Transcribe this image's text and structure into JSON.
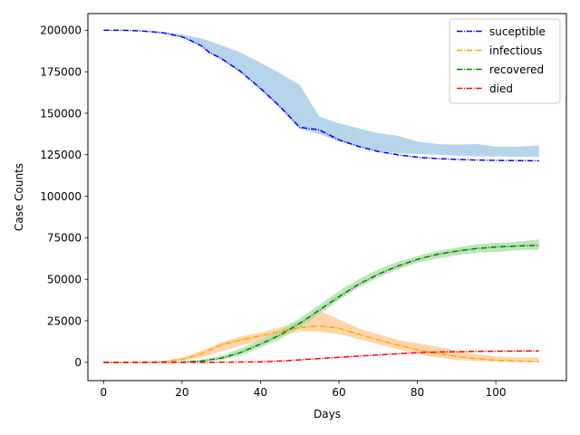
{
  "chart_data": {
    "type": "line",
    "title": "",
    "xlabel": "Days",
    "ylabel": "Case Counts",
    "xlim": [
      -4,
      118
    ],
    "ylim": [
      -11000,
      210000
    ],
    "xticks": [
      0,
      20,
      40,
      60,
      80,
      100
    ],
    "yticks": [
      0,
      25000,
      50000,
      75000,
      100000,
      125000,
      150000,
      175000,
      200000
    ],
    "xtick_labels": [
      "0",
      "20",
      "40",
      "60",
      "80",
      "100"
    ],
    "ytick_labels": [
      "0",
      "25000",
      "50000",
      "75000",
      "100000",
      "125000",
      "150000",
      "175000",
      "200000"
    ],
    "legend_position": "top-right",
    "grid": false,
    "series": [
      {
        "name": "suceptible",
        "color": "#0000ff",
        "band_color": "#9ec7e4",
        "x": [
          0,
          5,
          10,
          15,
          20,
          22,
          25,
          27,
          30,
          35,
          40,
          45,
          50,
          55,
          60,
          65,
          70,
          75,
          80,
          85,
          90,
          95,
          100,
          105,
          111
        ],
        "values": [
          200000,
          200000,
          199500,
          198500,
          196000,
          194000,
          190500,
          186500,
          183000,
          175000,
          165000,
          154000,
          141500,
          140000,
          134000,
          130000,
          127000,
          125000,
          123500,
          122700,
          122200,
          121800,
          121600,
          121500,
          121400
        ],
        "upper": [
          200000,
          200000,
          199600,
          199000,
          197500,
          196500,
          195000,
          193500,
          191000,
          186500,
          180500,
          174000,
          167000,
          148000,
          144000,
          141000,
          138000,
          136500,
          133000,
          131500,
          131000,
          131500,
          130000,
          129800,
          130600
        ],
        "lower": [
          200000,
          200000,
          199400,
          198200,
          195500,
          193500,
          190000,
          186000,
          182500,
          174500,
          164000,
          153000,
          140500,
          137500,
          133000,
          130000,
          127500,
          126000,
          125500,
          125000,
          124500,
          124000,
          124000,
          123800,
          123800
        ]
      },
      {
        "name": "infectious",
        "color": "#ffa500",
        "band_color": "#fdc890",
        "x": [
          0,
          5,
          10,
          15,
          20,
          25,
          30,
          35,
          40,
          45,
          50,
          55,
          60,
          65,
          70,
          75,
          80,
          85,
          90,
          95,
          100,
          105,
          111
        ],
        "values": [
          0,
          0,
          100,
          400,
          1800,
          5200,
          10500,
          13500,
          16000,
          18500,
          21000,
          22000,
          20500,
          17000,
          13500,
          10500,
          7500,
          5500,
          3500,
          2200,
          1300,
          800,
          400
        ],
        "upper": [
          0,
          0,
          200,
          700,
          2800,
          7000,
          12000,
          15500,
          18000,
          21000,
          24500,
          31000,
          26000,
          20500,
          17000,
          13500,
          11500,
          9500,
          7000,
          5000,
          3500,
          3000,
          2800
        ],
        "lower": [
          0,
          0,
          0,
          200,
          1000,
          3000,
          6500,
          10000,
          12500,
          15500,
          19000,
          18500,
          17000,
          14000,
          11000,
          8000,
          5000,
          3000,
          1500,
          800,
          400,
          200,
          100
        ]
      },
      {
        "name": "recovered",
        "color": "#008000",
        "band_color": "#a5dca2",
        "x": [
          0,
          10,
          20,
          25,
          30,
          35,
          40,
          45,
          50,
          55,
          60,
          65,
          70,
          75,
          80,
          85,
          90,
          95,
          100,
          105,
          111
        ],
        "values": [
          0,
          0,
          200,
          800,
          2500,
          6000,
          11000,
          16500,
          23500,
          31500,
          39500,
          47000,
          53000,
          58000,
          62000,
          65000,
          67000,
          68500,
          69500,
          70000,
          70500
        ],
        "upper": [
          0,
          0,
          400,
          1500,
          4000,
          8500,
          13500,
          19500,
          26500,
          34500,
          43000,
          50000,
          56000,
          60500,
          64000,
          67000,
          69000,
          71000,
          72000,
          72500,
          74000
        ],
        "lower": [
          0,
          0,
          100,
          400,
          1500,
          4000,
          9000,
          14000,
          21000,
          29000,
          37500,
          45000,
          51000,
          56000,
          60000,
          62500,
          64500,
          66000,
          66500,
          67500,
          68000
        ]
      },
      {
        "name": "died",
        "color": "#ff0000",
        "band_color": "#f4b0b0",
        "x": [
          0,
          10,
          20,
          30,
          40,
          45,
          50,
          55,
          60,
          65,
          70,
          75,
          80,
          85,
          90,
          95,
          100,
          105,
          111
        ],
        "values": [
          0,
          0,
          0,
          100,
          300,
          800,
          1500,
          2300,
          3000,
          3800,
          4500,
          5200,
          5800,
          6200,
          6400,
          6600,
          6700,
          6800,
          6900
        ],
        "upper": [
          0,
          0,
          0,
          150,
          400,
          900,
          1700,
          2500,
          3200,
          4000,
          4700,
          5400,
          6000,
          6400,
          6600,
          6800,
          6900,
          7000,
          7100
        ],
        "lower": [
          0,
          0,
          0,
          80,
          250,
          700,
          1300,
          2100,
          2800,
          3600,
          4300,
          5000,
          5600,
          6000,
          6200,
          6400,
          6500,
          6600,
          6700
        ]
      }
    ]
  }
}
